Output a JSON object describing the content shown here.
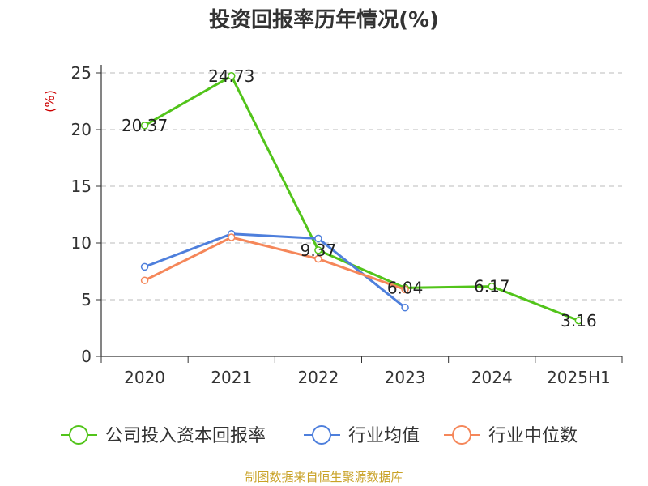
{
  "footer": "制图数据来自恒生聚源数据库",
  "chart_data": {
    "type": "line",
    "title": "投资回报率历年情况(%)",
    "ylabel": "(%)",
    "categories": [
      "2020",
      "2021",
      "2022",
      "2023",
      "2024",
      "2025H1"
    ],
    "yticks": [
      "0",
      "5",
      "10",
      "15",
      "20",
      "25"
    ],
    "ylim": [
      0,
      25
    ],
    "grid": true,
    "legend_position": "bottom",
    "series": [
      {
        "name": "公司投入资本回报率",
        "color": "#52c41a",
        "values": [
          20.37,
          24.73,
          9.37,
          6.04,
          6.17,
          3.16
        ],
        "labels": [
          "20.37",
          "24.73",
          "9.37",
          "6.04",
          "6.17",
          "3.16"
        ]
      },
      {
        "name": "行业均值",
        "color": "#4e7fdc",
        "values": [
          7.9,
          10.8,
          10.4,
          4.3,
          null,
          null
        ]
      },
      {
        "name": "行业中位数",
        "color": "#f5875a",
        "values": [
          6.7,
          10.5,
          8.6,
          5.9,
          null,
          null
        ]
      }
    ]
  }
}
